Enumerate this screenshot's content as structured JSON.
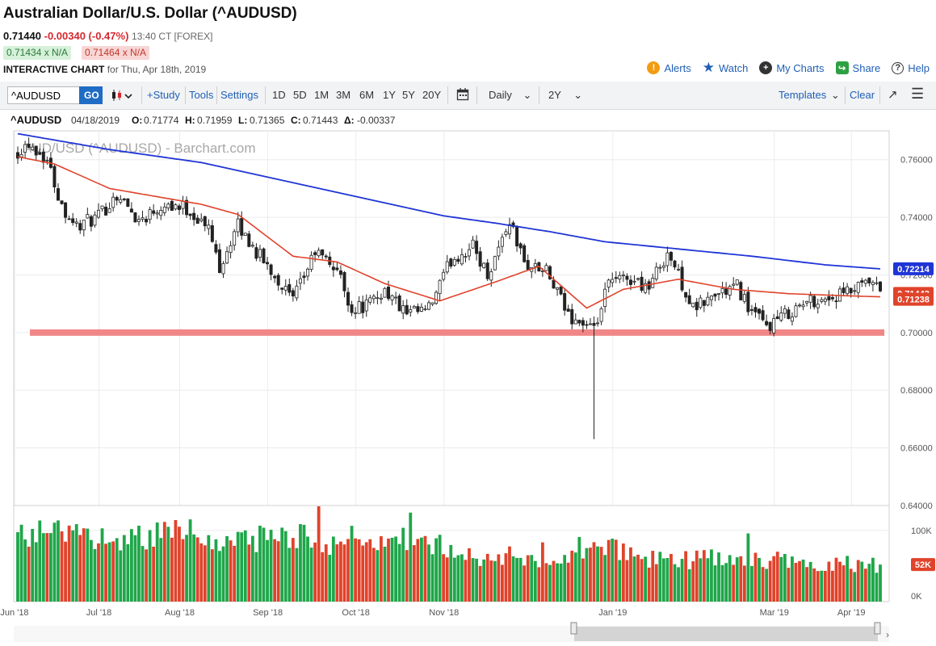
{
  "header": {
    "title": "Australian Dollar/U.S. Dollar (^AUDUSD)",
    "last": "0.71440",
    "change": "-0.00340 (-0.47%)",
    "time": "13:40 CT [FOREX]",
    "bid": "0.71434 x N/A",
    "ask": "0.71464 x N/A",
    "chart_label": "INTERACTIVE CHART",
    "chart_date": "for Thu, Apr 18th, 2019"
  },
  "actions": [
    {
      "label": "Alerts",
      "icon": "alert-icon"
    },
    {
      "label": "Watch",
      "icon": "star-icon"
    },
    {
      "label": "My Charts",
      "icon": "plus-circle-icon"
    },
    {
      "label": "Share",
      "icon": "share-icon"
    },
    {
      "label": "Help",
      "icon": "help-icon"
    }
  ],
  "toolbar": {
    "symbol_value": "^AUDUSD",
    "go_label": "GO",
    "study_label": "+Study",
    "tools_label": "Tools",
    "settings_label": "Settings",
    "ranges": [
      "1D",
      "5D",
      "1M",
      "3M",
      "6M",
      "1Y",
      "5Y",
      "20Y"
    ],
    "interval": "Daily",
    "period": "2Y",
    "templates_label": "Templates",
    "clear_label": "Clear"
  },
  "ohlc_line": {
    "symbol": "^AUDUSD",
    "date": "04/18/2019",
    "o_label": "O:",
    "o": "0.71774",
    "h_label": "H:",
    "h": "0.71959",
    "l_label": "L:",
    "l": "0.71365",
    "c_label": "C:",
    "c": "0.71443",
    "d_label": "Δ:",
    "d": "-0.00337"
  },
  "colors": {
    "ma_long": "#1f35d6",
    "ma_short": "#e0432b",
    "support": "#f07a7a",
    "up": "#1fa64a",
    "down": "#e0432b",
    "link": "#1f5fb5"
  },
  "chart_data": {
    "type": "candlestick",
    "title": "AUD/USD (^AUDUSD) - Barchart.com",
    "ylim": [
      0.64,
      0.77
    ],
    "yticks": [
      "0.76000",
      "0.74000",
      "0.72000",
      "0.70000",
      "0.68000",
      "0.66000",
      "0.64000"
    ],
    "xticks": [
      "Jun '18",
      "Jul '18",
      "Aug '18",
      "Sep '18",
      "Oct '18",
      "Nov '18",
      "Jan '19",
      "Mar '19",
      "Apr '19"
    ],
    "support_level": 0.7,
    "close_path": [
      {
        "t": 0,
        "v": 0.763
      },
      {
        "t": 3,
        "v": 0.766
      },
      {
        "t": 8,
        "v": 0.76
      },
      {
        "t": 12,
        "v": 0.744
      },
      {
        "t": 16,
        "v": 0.737
      },
      {
        "t": 22,
        "v": 0.74
      },
      {
        "t": 27,
        "v": 0.748
      },
      {
        "t": 33,
        "v": 0.739
      },
      {
        "t": 40,
        "v": 0.745
      },
      {
        "t": 46,
        "v": 0.743
      },
      {
        "t": 52,
        "v": 0.736
      },
      {
        "t": 55,
        "v": 0.723
      },
      {
        "t": 60,
        "v": 0.737
      },
      {
        "t": 65,
        "v": 0.728
      },
      {
        "t": 70,
        "v": 0.72
      },
      {
        "t": 75,
        "v": 0.711
      },
      {
        "t": 81,
        "v": 0.728
      },
      {
        "t": 87,
        "v": 0.722
      },
      {
        "t": 91,
        "v": 0.708
      },
      {
        "t": 96,
        "v": 0.71
      },
      {
        "t": 100,
        "v": 0.715
      },
      {
        "t": 106,
        "v": 0.706
      },
      {
        "t": 112,
        "v": 0.708
      },
      {
        "t": 118,
        "v": 0.725
      },
      {
        "t": 124,
        "v": 0.73
      },
      {
        "t": 128,
        "v": 0.72
      },
      {
        "t": 134,
        "v": 0.739
      },
      {
        "t": 138,
        "v": 0.724
      },
      {
        "t": 144,
        "v": 0.721
      },
      {
        "t": 150,
        "v": 0.706
      },
      {
        "t": 154,
        "v": 0.703
      },
      {
        "t": 157,
        "v": 0.7
      },
      {
        "t": 161,
        "v": 0.717
      },
      {
        "t": 166,
        "v": 0.719
      },
      {
        "t": 172,
        "v": 0.716
      },
      {
        "t": 177,
        "v": 0.728
      },
      {
        "t": 180,
        "v": 0.72
      },
      {
        "t": 184,
        "v": 0.708
      },
      {
        "t": 190,
        "v": 0.713
      },
      {
        "t": 196,
        "v": 0.716
      },
      {
        "t": 200,
        "v": 0.707
      },
      {
        "t": 204,
        "v": 0.702
      },
      {
        "t": 210,
        "v": 0.707
      },
      {
        "t": 216,
        "v": 0.711
      },
      {
        "t": 222,
        "v": 0.712
      },
      {
        "t": 227,
        "v": 0.714
      },
      {
        "t": 232,
        "v": 0.717
      },
      {
        "t": 235,
        "v": 0.7144
      }
    ],
    "low_spike": {
      "t": 157,
      "low": 0.663
    },
    "ma_long": [
      {
        "t": 0,
        "v": 0.769
      },
      {
        "t": 25,
        "v": 0.7635
      },
      {
        "t": 50,
        "v": 0.759
      },
      {
        "t": 75,
        "v": 0.752
      },
      {
        "t": 100,
        "v": 0.745
      },
      {
        "t": 116,
        "v": 0.7405
      },
      {
        "t": 130,
        "v": 0.738
      },
      {
        "t": 145,
        "v": 0.735
      },
      {
        "t": 160,
        "v": 0.7315
      },
      {
        "t": 180,
        "v": 0.729
      },
      {
        "t": 200,
        "v": 0.7265
      },
      {
        "t": 220,
        "v": 0.7235
      },
      {
        "t": 235,
        "v": 0.7221
      }
    ],
    "ma_short": [
      {
        "t": 0,
        "v": 0.761
      },
      {
        "t": 10,
        "v": 0.7585
      },
      {
        "t": 25,
        "v": 0.75
      },
      {
        "t": 50,
        "v": 0.7445
      },
      {
        "t": 60,
        "v": 0.741
      },
      {
        "t": 75,
        "v": 0.7265
      },
      {
        "t": 87,
        "v": 0.7245
      },
      {
        "t": 100,
        "v": 0.717
      },
      {
        "t": 115,
        "v": 0.711
      },
      {
        "t": 130,
        "v": 0.7175
      },
      {
        "t": 142,
        "v": 0.723
      },
      {
        "t": 155,
        "v": 0.7085
      },
      {
        "t": 165,
        "v": 0.715
      },
      {
        "t": 180,
        "v": 0.7185
      },
      {
        "t": 195,
        "v": 0.715
      },
      {
        "t": 210,
        "v": 0.7135
      },
      {
        "t": 225,
        "v": 0.7128
      },
      {
        "t": 235,
        "v": 0.7124
      }
    ],
    "price_badges": [
      {
        "label": "0.72214",
        "value": 0.72214
      },
      {
        "label": "0.71443",
        "value": 0.71443
      },
      {
        "label": "0.71238",
        "value": 0.71238
      }
    ],
    "volume_ylim": [
      0,
      135000
    ],
    "volume_ticks": [
      "100K",
      "0K"
    ],
    "volume_profile": [
      {
        "t": 0,
        "v": 100000
      },
      {
        "t": 30,
        "v": 95000
      },
      {
        "t": 45,
        "v": 100000
      },
      {
        "t": 60,
        "v": 88000
      },
      {
        "t": 75,
        "v": 92000
      },
      {
        "t": 95,
        "v": 82000
      },
      {
        "t": 110,
        "v": 90000
      },
      {
        "t": 120,
        "v": 68000
      },
      {
        "t": 150,
        "v": 62000
      },
      {
        "t": 158,
        "v": 78000
      },
      {
        "t": 175,
        "v": 60000
      },
      {
        "t": 200,
        "v": 62000
      },
      {
        "t": 235,
        "v": 52000
      }
    ],
    "volume_badge": "52K"
  }
}
